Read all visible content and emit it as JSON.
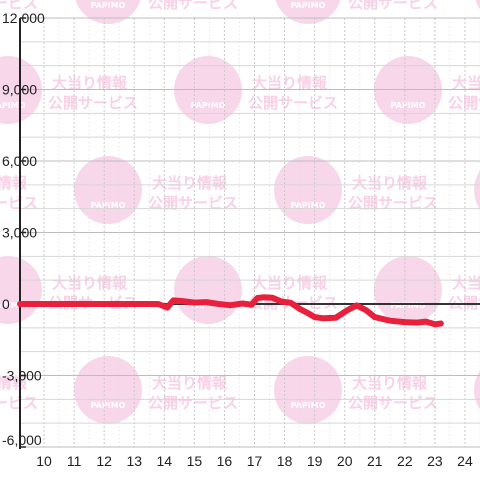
{
  "watermark": {
    "logo_text": "PAPIMO",
    "line1": "大当り情報",
    "line2": "公開サービス",
    "color": "#f7c9e3"
  },
  "chart_data": {
    "type": "line",
    "title": "",
    "xlabel": "",
    "ylabel": "",
    "xlim": [
      9.2,
      24.5
    ],
    "ylim": [
      -6000,
      12000
    ],
    "x_ticks": [
      10,
      11,
      12,
      13,
      14,
      15,
      16,
      17,
      18,
      19,
      20,
      21,
      22,
      23,
      24
    ],
    "y_ticks": [
      12000,
      9000,
      6000,
      3000,
      0,
      -3000,
      -6000
    ],
    "y_tick_labels": [
      "12,000",
      "9,000",
      "6,000",
      "3,000",
      "0",
      "-3,000",
      "-6,000"
    ],
    "grid": true,
    "series": [
      {
        "color": "#e8203c",
        "points": [
          [
            9.2,
            0
          ],
          [
            10,
            0
          ],
          [
            11,
            0
          ],
          [
            12,
            0
          ],
          [
            13,
            0
          ],
          [
            13.8,
            0
          ],
          [
            14.1,
            -150
          ],
          [
            14.3,
            150
          ],
          [
            14.6,
            120
          ],
          [
            15.0,
            60
          ],
          [
            15.4,
            80
          ],
          [
            15.8,
            0
          ],
          [
            16.2,
            -50
          ],
          [
            16.6,
            20
          ],
          [
            16.9,
            -30
          ],
          [
            17.1,
            250
          ],
          [
            17.3,
            280
          ],
          [
            17.6,
            260
          ],
          [
            17.9,
            100
          ],
          [
            18.2,
            50
          ],
          [
            18.5,
            -200
          ],
          [
            18.8,
            -400
          ],
          [
            19.0,
            -550
          ],
          [
            19.3,
            -600
          ],
          [
            19.7,
            -580
          ],
          [
            20.1,
            -250
          ],
          [
            20.4,
            -60
          ],
          [
            20.7,
            -250
          ],
          [
            21.0,
            -550
          ],
          [
            21.5,
            -700
          ],
          [
            22.0,
            -760
          ],
          [
            22.4,
            -780
          ],
          [
            22.7,
            -740
          ],
          [
            23.0,
            -850
          ],
          [
            23.2,
            -820
          ]
        ]
      }
    ]
  }
}
